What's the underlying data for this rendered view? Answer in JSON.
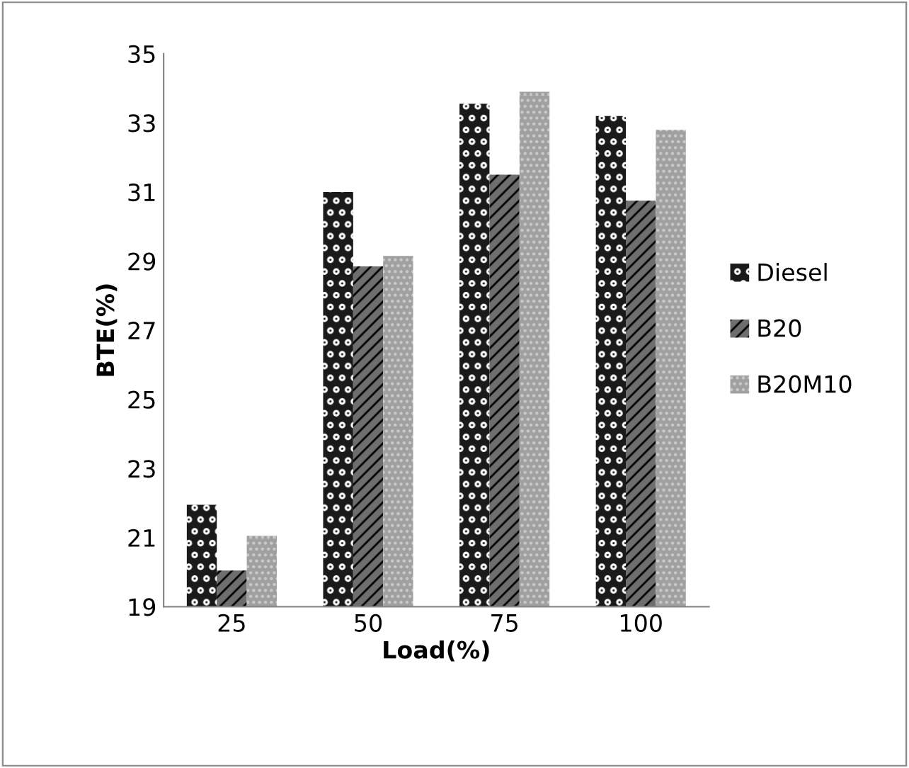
{
  "chart_data": {
    "type": "bar",
    "xlabel": "Load(%)",
    "ylabel": "BTE(%)",
    "categories": [
      "25",
      "50",
      "75",
      "100"
    ],
    "series": [
      {
        "name": "Diesel",
        "color": "#1a1a1a",
        "values": [
          21.95,
          31.0,
          33.55,
          33.2
        ]
      },
      {
        "name": "B20",
        "color": "#6e6e6e",
        "values": [
          20.05,
          28.85,
          31.5,
          30.75
        ]
      },
      {
        "name": "B20M10",
        "color": "#a0a0a0",
        "values": [
          21.05,
          29.15,
          33.9,
          32.8
        ]
      }
    ],
    "ylim": [
      19,
      35
    ],
    "yticks": [
      19,
      21,
      23,
      25,
      27,
      29,
      31,
      33,
      35
    ],
    "grid": false,
    "legend": "right"
  }
}
